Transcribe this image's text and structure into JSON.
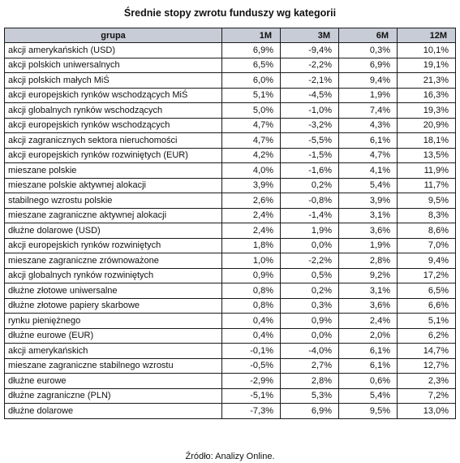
{
  "title": "Średnie stopy zwrotu funduszy wg kategorii",
  "columns": [
    "grupa",
    "1M",
    "3M",
    "6M",
    "12M"
  ],
  "rows": [
    {
      "grupa": "akcji amerykańskich (USD)",
      "m1": "6,9%",
      "m3": "-9,4%",
      "m6": "0,3%",
      "m12": "10,1%"
    },
    {
      "grupa": "akcji polskich uniwersalnych",
      "m1": "6,5%",
      "m3": "-2,2%",
      "m6": "6,9%",
      "m12": "19,1%"
    },
    {
      "grupa": "akcji polskich małych MiŚ",
      "m1": "6,0%",
      "m3": "-2,1%",
      "m6": "9,4%",
      "m12": "21,3%"
    },
    {
      "grupa": "akcji europejskich rynków wschodzących MiŚ",
      "m1": "5,1%",
      "m3": "-4,5%",
      "m6": "1,9%",
      "m12": "16,3%"
    },
    {
      "grupa": "akcji globalnych rynków wschodzących",
      "m1": "5,0%",
      "m3": "-1,0%",
      "m6": "7,4%",
      "m12": "19,3%"
    },
    {
      "grupa": "akcji europejskich rynków wschodzących",
      "m1": "4,7%",
      "m3": "-3,2%",
      "m6": "4,3%",
      "m12": "20,9%"
    },
    {
      "grupa": "akcji zagranicznych sektora nieruchomości",
      "m1": "4,7%",
      "m3": "-5,5%",
      "m6": "6,1%",
      "m12": "18,1%"
    },
    {
      "grupa": "akcji europejskich rynków rozwiniętych (EUR)",
      "m1": "4,2%",
      "m3": "-1,5%",
      "m6": "4,7%",
      "m12": "13,5%"
    },
    {
      "grupa": "mieszane polskie",
      "m1": "4,0%",
      "m3": "-1,6%",
      "m6": "4,1%",
      "m12": "11,9%"
    },
    {
      "grupa": "mieszane polskie aktywnej alokacji",
      "m1": "3,9%",
      "m3": "0,2%",
      "m6": "5,4%",
      "m12": "11,7%"
    },
    {
      "grupa": "stabilnego wzrostu polskie",
      "m1": "2,6%",
      "m3": "-0,8%",
      "m6": "3,9%",
      "m12": "9,5%"
    },
    {
      "grupa": "mieszane zagraniczne aktywnej alokacji",
      "m1": "2,4%",
      "m3": "-1,4%",
      "m6": "3,1%",
      "m12": "8,3%"
    },
    {
      "grupa": "dłużne dolarowe (USD)",
      "m1": "2,4%",
      "m3": "1,9%",
      "m6": "3,6%",
      "m12": "8,6%"
    },
    {
      "grupa": "akcji europejskich rynków rozwiniętych",
      "m1": "1,8%",
      "m3": "0,0%",
      "m6": "1,9%",
      "m12": "7,0%"
    },
    {
      "grupa": "mieszane zagraniczne zrównoważone",
      "m1": "1,0%",
      "m3": "-2,2%",
      "m6": "2,8%",
      "m12": "9,4%"
    },
    {
      "grupa": "akcji globalnych rynków rozwiniętych",
      "m1": "0,9%",
      "m3": "0,5%",
      "m6": "9,2%",
      "m12": "17,2%"
    },
    {
      "grupa": "dłużne złotowe uniwersalne",
      "m1": "0,8%",
      "m3": "0,2%",
      "m6": "3,1%",
      "m12": "6,5%"
    },
    {
      "grupa": "dłużne złotowe papiery skarbowe",
      "m1": "0,8%",
      "m3": "0,3%",
      "m6": "3,6%",
      "m12": "6,6%"
    },
    {
      "grupa": "rynku pieniężnego",
      "m1": "0,4%",
      "m3": "0,9%",
      "m6": "2,4%",
      "m12": "5,1%"
    },
    {
      "grupa": "dłużne eurowe (EUR)",
      "m1": "0,4%",
      "m3": "0,0%",
      "m6": "2,0%",
      "m12": "6,2%"
    },
    {
      "grupa": "akcji amerykańskich",
      "m1": "-0,1%",
      "m3": "-4,0%",
      "m6": "6,1%",
      "m12": "14,7%"
    },
    {
      "grupa": "mieszane zagraniczne stabilnego wzrostu",
      "m1": "-0,5%",
      "m3": "2,7%",
      "m6": "6,1%",
      "m12": "12,7%"
    },
    {
      "grupa": "dłużne eurowe",
      "m1": "-2,9%",
      "m3": "2,8%",
      "m6": "0,6%",
      "m12": "2,3%"
    },
    {
      "grupa": "dłużne zagraniczne (PLN)",
      "m1": "-5,1%",
      "m3": "5,3%",
      "m6": "5,4%",
      "m12": "7,2%"
    },
    {
      "grupa": "dłużne dolarowe",
      "m1": "-7,3%",
      "m3": "6,9%",
      "m6": "9,5%",
      "m12": "13,0%"
    }
  ],
  "source": "Źródło: Analizy Online.",
  "colors": {
    "header_background": "#c8ccd6",
    "border": "#1a1a1a",
    "text": "#111111"
  }
}
